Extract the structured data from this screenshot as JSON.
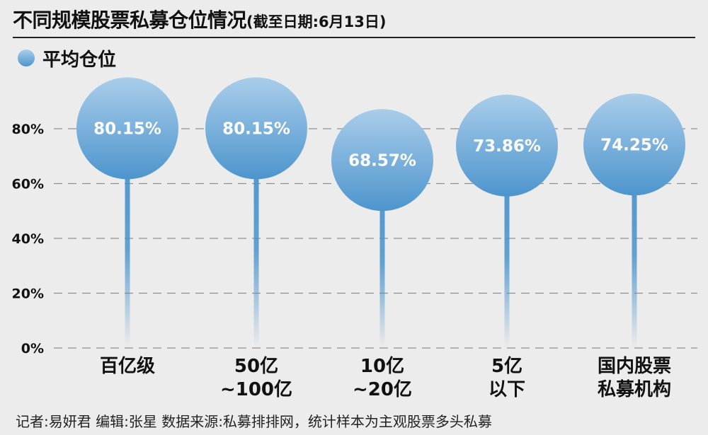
{
  "header": {
    "title": "不同规模股票私募仓位情况",
    "subtitle": "(截至日期:6月13日)"
  },
  "legend": {
    "label": "平均仓位",
    "icon": "blue-bubble-icon"
  },
  "chart_data": {
    "type": "bar",
    "style": "lollipop",
    "title": "不同规模股票私募仓位情况",
    "subtitle": "(截至日期:6月13日)",
    "categories": [
      [
        "百亿级"
      ],
      [
        "50亿",
        "~100亿"
      ],
      [
        "10亿",
        "~20亿"
      ],
      [
        "5亿",
        "以下"
      ],
      [
        "国内股票",
        "私募机构"
      ]
    ],
    "series": [
      {
        "name": "平均仓位",
        "values": [
          80.15,
          80.15,
          68.57,
          73.86,
          74.25
        ],
        "labels": [
          "80.15%",
          "80.15%",
          "68.57%",
          "73.86%",
          "74.25%"
        ]
      }
    ],
    "yticks": [
      "0%",
      "20%",
      "40%",
      "60%",
      "80%"
    ],
    "ylim": [
      0,
      80
    ],
    "grid": true,
    "legend_position": "top-left",
    "colors": {
      "bubble_top": "#a9cdea",
      "bubble_bottom": "#4d95cd",
      "stem": "#4a93cc",
      "grid": "#8e8e8e",
      "value_text": "#ffffff"
    }
  },
  "footer": {
    "credit": "记者:易妍君   编辑:张星   数据来源:私募排排网，统计样本为主观股票多头私募"
  }
}
